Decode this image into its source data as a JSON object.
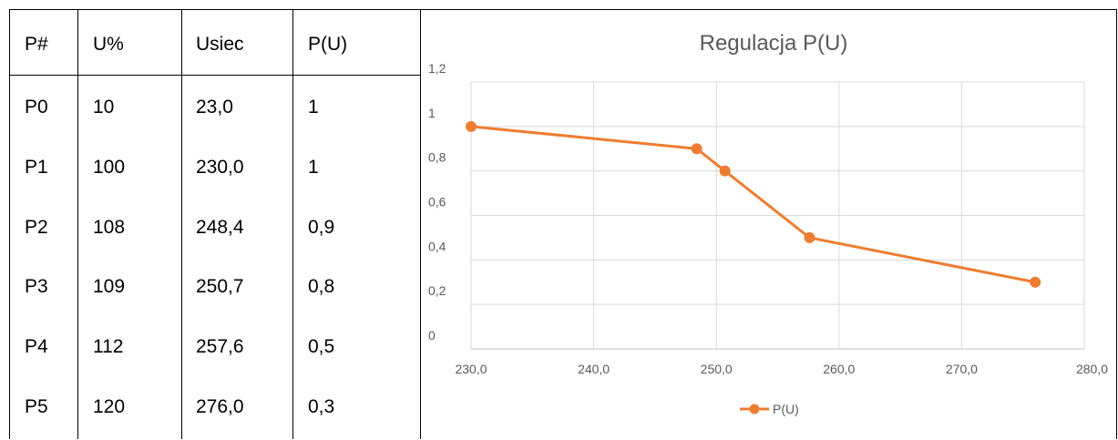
{
  "table": {
    "headers": [
      "P#",
      "U%",
      "Usiec",
      "P(U)"
    ],
    "rows": [
      [
        "P0",
        "10",
        "23,0",
        "1"
      ],
      [
        "P1",
        "100",
        "230,0",
        "1"
      ],
      [
        "P2",
        "108",
        "248,4",
        "0,9"
      ],
      [
        "P3",
        "109",
        "250,7",
        "0,8"
      ],
      [
        "P4",
        "112",
        "257,6",
        "0,5"
      ],
      [
        "P5",
        "120",
        "276,0",
        "0,3"
      ]
    ]
  },
  "chart_data": {
    "type": "line",
    "title": "Regulacja P(U)",
    "xlabel": "",
    "ylabel": "",
    "xlim": [
      230,
      280
    ],
    "ylim": [
      0,
      1.2
    ],
    "x_ticks": [
      "230,0",
      "240,0",
      "250,0",
      "260,0",
      "270,0",
      "280,0"
    ],
    "y_ticks": [
      "0",
      "0,2",
      "0,4",
      "0,6",
      "0,8",
      "1",
      "1,2"
    ],
    "grid": true,
    "legend": "bottom",
    "series": [
      {
        "name": "P(U)",
        "color": "#ED7D31",
        "x": [
          230.0,
          248.4,
          250.7,
          257.6,
          276.0
        ],
        "y": [
          1,
          0.9,
          0.8,
          0.5,
          0.3
        ]
      }
    ]
  }
}
